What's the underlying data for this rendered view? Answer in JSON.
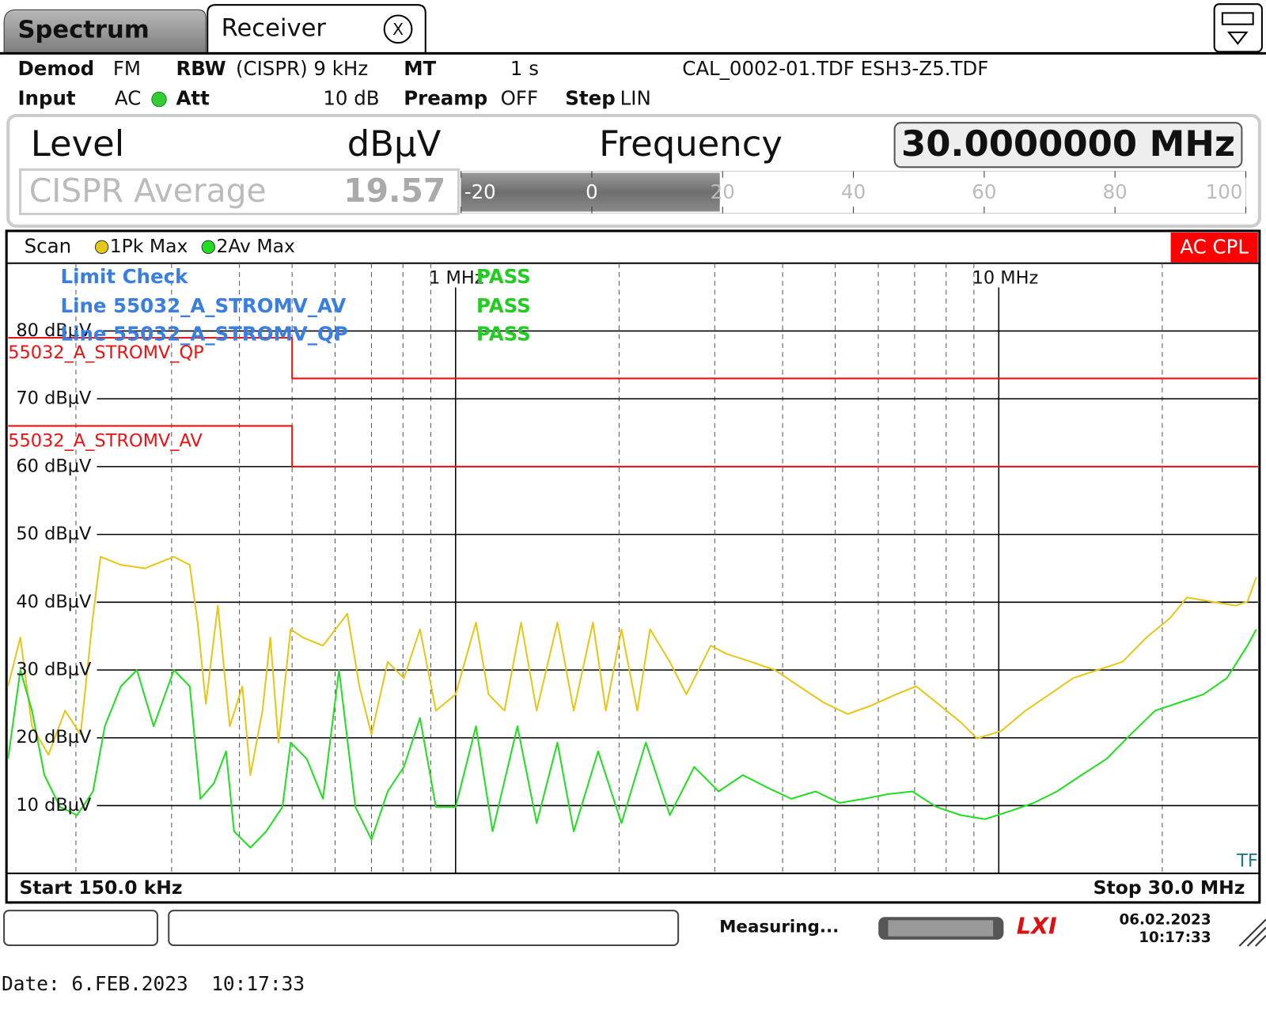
{
  "tabs": [
    "Spectrum",
    "Receiver"
  ],
  "close_button": "X",
  "settings": {
    "demod_label": "Demod",
    "demod": "FM",
    "rbw_label": "RBW",
    "rbw": "(CISPR) 9 kHz",
    "mt_label": "MT",
    "mt": "1 s",
    "transducers": "CAL_0002-01.TDF ESH3-Z5.TDF",
    "input_label": "Input",
    "input": "AC",
    "att_label": "Att",
    "att": "10 dB",
    "preamp_label": "Preamp",
    "preamp": "OFF",
    "step_label": "Step",
    "step": "LIN"
  },
  "level_panel": {
    "level_label": "Level",
    "unit": "dBµV",
    "frequency_label": "Frequency",
    "frequency": "30.0000000 MHz",
    "detector": "CISPR Average",
    "value": 19.57,
    "meter_lim": [
      -20,
      100
    ],
    "meter_ticks": [
      -20,
      0,
      20,
      40,
      60,
      80,
      100
    ]
  },
  "chart_data": {
    "type": "line",
    "scan_label": "Scan",
    "coupling": "AC CPL",
    "xscale": "log",
    "grid": true,
    "xlim": [
      0.15,
      30
    ],
    "ylim": [
      0,
      90
    ],
    "xticks": [
      {
        "value": 1,
        "label": "1 MHz"
      },
      {
        "value": 10,
        "label": "10 MHz"
      }
    ],
    "xminor": [
      0.2,
      0.3,
      0.4,
      0.5,
      0.6,
      0.7,
      0.8,
      0.9,
      2,
      3,
      4,
      5,
      6,
      7,
      8,
      9,
      20
    ],
    "yticks": [
      {
        "value": 10,
        "label": "10 dBµV"
      },
      {
        "value": 20,
        "label": "20 dBµV"
      },
      {
        "value": 30,
        "label": "30 dBµV"
      },
      {
        "value": 40,
        "label": "40 dBµV"
      },
      {
        "value": 50,
        "label": "50 dBµV"
      },
      {
        "value": 60,
        "label": "60 dBµV"
      },
      {
        "value": 70,
        "label": "70 dBµV"
      },
      {
        "value": 80,
        "label": "80 dBµV"
      }
    ],
    "series": [
      {
        "name": "1Pk Max",
        "color": "#e6c619",
        "x": [
          0.15,
          0.158,
          0.166,
          0.178,
          0.191,
          0.204,
          0.215,
          0.222,
          0.242,
          0.268,
          0.303,
          0.324,
          0.335,
          0.347,
          0.365,
          0.384,
          0.405,
          0.419,
          0.441,
          0.456,
          0.472,
          0.497,
          0.523,
          0.57,
          0.632,
          0.665,
          0.7,
          0.75,
          0.803,
          0.86,
          0.92,
          1.0,
          1.09,
          1.15,
          1.23,
          1.32,
          1.41,
          1.54,
          1.65,
          1.79,
          1.89,
          2.02,
          2.16,
          2.28,
          2.48,
          2.66,
          2.95,
          3.15,
          3.5,
          3.87,
          4.29,
          4.76,
          5.27,
          5.84,
          6.47,
          7.05,
          7.68,
          8.51,
          9.12,
          10.1,
          11.2,
          12.4,
          13.7,
          15.2,
          16.9,
          18.7,
          20.7,
          22.2,
          24.6,
          27.3,
          28.7,
          29.8
        ],
        "values": [
          27.6,
          34.8,
          21.7,
          17.5,
          24,
          20.5,
          38,
          46.7,
          45.5,
          45,
          46.7,
          45.5,
          37,
          25,
          39.5,
          21.7,
          27.6,
          14.5,
          24,
          34.8,
          19.3,
          36,
          34.8,
          33.6,
          38.3,
          27.6,
          20.5,
          31.2,
          28.8,
          36,
          24,
          26.4,
          37,
          26.4,
          24,
          37,
          24,
          37,
          24,
          37,
          24,
          36,
          24,
          36,
          31.2,
          26.4,
          33.6,
          32.4,
          31.2,
          30,
          27.6,
          25.2,
          23.5,
          24.8,
          26.4,
          27.6,
          25.2,
          22.3,
          19.9,
          21,
          24,
          26.4,
          28.8,
          30,
          31.2,
          34.8,
          37.7,
          40.7,
          40.1,
          39.5,
          40.1,
          43.7
        ]
      },
      {
        "name": "2Av Max",
        "color": "#22dd22",
        "x": [
          0.15,
          0.158,
          0.166,
          0.175,
          0.187,
          0.201,
          0.215,
          0.226,
          0.242,
          0.259,
          0.278,
          0.303,
          0.324,
          0.339,
          0.359,
          0.378,
          0.391,
          0.419,
          0.448,
          0.48,
          0.497,
          0.532,
          0.57,
          0.61,
          0.654,
          0.7,
          0.75,
          0.803,
          0.86,
          0.92,
          1.0,
          1.09,
          1.17,
          1.3,
          1.41,
          1.54,
          1.65,
          1.83,
          2.02,
          2.24,
          2.48,
          2.75,
          3.05,
          3.38,
          3.74,
          4.15,
          4.6,
          5.09,
          5.65,
          6.26,
          6.93,
          7.68,
          8.51,
          9.43,
          10.5,
          11.6,
          12.8,
          14.2,
          15.8,
          17.5,
          19.4,
          21.5,
          23.8,
          26.3,
          28.7,
          29.8
        ],
        "values": [
          16.9,
          30,
          24,
          14.5,
          9.8,
          8.6,
          12.1,
          21.7,
          27.6,
          30,
          21.7,
          30,
          27.6,
          11,
          13.3,
          18,
          6.2,
          3.8,
          6.2,
          9.8,
          19.3,
          16.9,
          11,
          30,
          9.8,
          5,
          12.1,
          15.7,
          22.9,
          9.8,
          9.8,
          21.7,
          6.2,
          21.7,
          7.4,
          19.3,
          6.2,
          18,
          7.4,
          19.3,
          8.6,
          15.7,
          12.1,
          14.5,
          12.7,
          11,
          12.1,
          10.4,
          11,
          11.7,
          12.1,
          9.8,
          8.6,
          8,
          9.2,
          10.4,
          12.1,
          14.5,
          16.9,
          20.5,
          24,
          25.2,
          26.4,
          28.8,
          33.6,
          36
        ]
      }
    ],
    "limit_lines": [
      {
        "name": "55032_A_STROMV_QP",
        "color": "#ee1111",
        "x": [
          0.15,
          0.5,
          0.5,
          30
        ],
        "values": [
          79,
          79,
          73,
          73
        ]
      },
      {
        "name": "55032_A_STROMV_AV",
        "color": "#ee1111",
        "x": [
          0.15,
          0.5,
          0.5,
          30
        ],
        "values": [
          66,
          66,
          60,
          60
        ]
      }
    ],
    "limit_check": {
      "title": "Limit Check",
      "result": "PASS",
      "lines": [
        {
          "label": "Line 55032_A_STROMV_AV",
          "result": "PASS"
        },
        {
          "label": "Line 55032_A_STROMV_QP",
          "result": "PASS"
        }
      ]
    },
    "start_label": "Start 150.0 kHz",
    "stop_label": "Stop 30.0 MHz",
    "transducer_flag": "TF"
  },
  "status": {
    "message": "Measuring...",
    "logo": "LXI",
    "date": "06.02.2023",
    "time": "10:17:33"
  },
  "footer": "Date: 6.FEB.2023  10:17:33"
}
